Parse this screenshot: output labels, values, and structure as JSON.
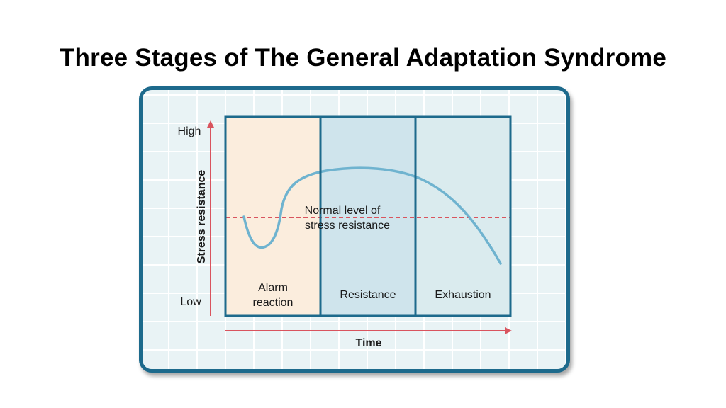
{
  "title": "Three Stages of The General Adaptation Syndrome",
  "diagram": {
    "y_axis": {
      "label": "Stress resistance",
      "high": "High",
      "low": "Low"
    },
    "x_axis": {
      "label": "Time"
    },
    "stages": [
      {
        "name": "Alarm",
        "line2": "reaction"
      },
      {
        "name": "Resistance"
      },
      {
        "name": "Exhaustion"
      }
    ],
    "normal_level": {
      "line1": "Normal level of",
      "line2": "stress resistance"
    },
    "colors": {
      "frame": "#1d6a8c",
      "alarm_fill": "#fbeddd",
      "resistance_fill": "#cfe4ec",
      "exhaustion_fill": "#daebee",
      "curve": "#6fb3cf",
      "arrows": "#d9545e",
      "normal_line": "#d9545e"
    }
  }
}
